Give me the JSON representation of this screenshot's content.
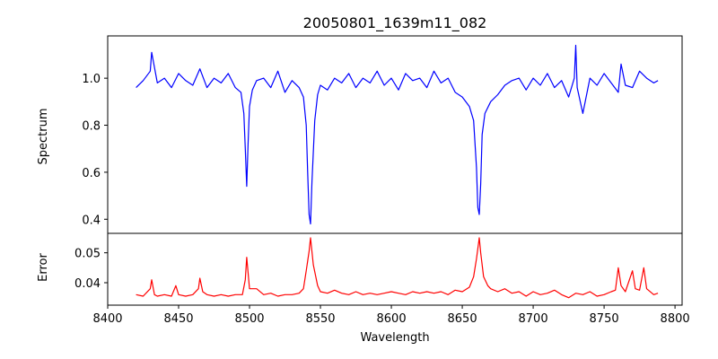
{
  "chart_data": [
    {
      "type": "line",
      "title": "20050801_1639m11_082",
      "xlabel": "",
      "ylabel": "Spectrum",
      "xlim": [
        8400,
        8805
      ],
      "ylim": [
        0.34,
        1.18
      ],
      "yticks": [
        "0.4",
        "0.6",
        "0.8",
        "1.0"
      ],
      "grid": false,
      "series": [
        {
          "color": "#0000ff",
          "x": [
            8420,
            8425,
            8430,
            8431,
            8435,
            8440,
            8445,
            8450,
            8455,
            8460,
            8465,
            8470,
            8475,
            8480,
            8485,
            8490,
            8494,
            8496,
            8497,
            8498,
            8499,
            8500,
            8502,
            8505,
            8510,
            8515,
            8520,
            8525,
            8530,
            8535,
            8538,
            8540,
            8541,
            8542,
            8543,
            8544,
            8546,
            8548,
            8550,
            8555,
            8560,
            8565,
            8570,
            8575,
            8580,
            8585,
            8590,
            8595,
            8600,
            8605,
            8610,
            8615,
            8620,
            8625,
            8630,
            8635,
            8640,
            8645,
            8650,
            8655,
            8658,
            8660,
            8661,
            8662,
            8663,
            8664,
            8666,
            8670,
            8675,
            8680,
            8685,
            8690,
            8695,
            8700,
            8705,
            8710,
            8715,
            8720,
            8725,
            8729,
            8730,
            8731,
            8735,
            8740,
            8745,
            8750,
            8755,
            8760,
            8762,
            8765,
            8770,
            8775,
            8780,
            8785,
            8788
          ],
          "y": [
            0.96,
            0.99,
            1.03,
            1.11,
            0.98,
            1.0,
            0.96,
            1.02,
            0.99,
            0.97,
            1.04,
            0.96,
            1.0,
            0.98,
            1.02,
            0.96,
            0.94,
            0.85,
            0.7,
            0.54,
            0.72,
            0.88,
            0.95,
            0.99,
            1.0,
            0.96,
            1.03,
            0.94,
            0.99,
            0.96,
            0.92,
            0.8,
            0.6,
            0.42,
            0.38,
            0.56,
            0.82,
            0.93,
            0.97,
            0.95,
            1.0,
            0.98,
            1.02,
            0.96,
            1.0,
            0.98,
            1.03,
            0.97,
            1.0,
            0.95,
            1.02,
            0.99,
            1.0,
            0.96,
            1.03,
            0.98,
            1.0,
            0.94,
            0.92,
            0.88,
            0.82,
            0.62,
            0.45,
            0.42,
            0.55,
            0.76,
            0.85,
            0.9,
            0.93,
            0.97,
            0.99,
            1.0,
            0.95,
            1.0,
            0.97,
            1.02,
            0.96,
            0.99,
            0.92,
            1.0,
            1.14,
            0.96,
            0.85,
            1.0,
            0.97,
            1.02,
            0.98,
            0.94,
            1.06,
            0.97,
            0.96,
            1.03,
            1.0,
            0.98,
            0.99
          ]
        }
      ]
    },
    {
      "type": "line",
      "title": "",
      "xlabel": "Wavelength",
      "ylabel": "Error",
      "xlim": [
        8400,
        8805
      ],
      "ylim": [
        0.0325,
        0.0565
      ],
      "yticks": [
        "0.04",
        "0.05"
      ],
      "xticks": [
        "8400",
        "8450",
        "8500",
        "8550",
        "8600",
        "8650",
        "8700",
        "8750",
        "8800"
      ],
      "grid": false,
      "series": [
        {
          "color": "#ff0000",
          "x": [
            8420,
            8425,
            8430,
            8431,
            8433,
            8435,
            8440,
            8445,
            8448,
            8450,
            8455,
            8460,
            8464,
            8465,
            8467,
            8470,
            8475,
            8480,
            8485,
            8490,
            8495,
            8497,
            8498,
            8500,
            8505,
            8510,
            8515,
            8520,
            8525,
            8530,
            8535,
            8538,
            8540,
            8542,
            8543,
            8545,
            8548,
            8550,
            8555,
            8560,
            8565,
            8570,
            8575,
            8580,
            8585,
            8590,
            8595,
            8600,
            8605,
            8610,
            8615,
            8620,
            8625,
            8630,
            8635,
            8640,
            8645,
            8650,
            8655,
            8658,
            8660,
            8662,
            8663,
            8665,
            8668,
            8670,
            8675,
            8680,
            8685,
            8690,
            8695,
            8700,
            8705,
            8710,
            8715,
            8720,
            8725,
            8730,
            8735,
            8740,
            8745,
            8750,
            8755,
            8758,
            8760,
            8762,
            8765,
            8770,
            8772,
            8775,
            8778,
            8780,
            8785,
            8788
          ],
          "y": [
            0.036,
            0.0355,
            0.038,
            0.041,
            0.036,
            0.0355,
            0.036,
            0.0355,
            0.039,
            0.036,
            0.0355,
            0.036,
            0.038,
            0.0415,
            0.037,
            0.036,
            0.0355,
            0.036,
            0.0355,
            0.036,
            0.036,
            0.041,
            0.0485,
            0.038,
            0.038,
            0.036,
            0.0365,
            0.0355,
            0.036,
            0.036,
            0.0365,
            0.038,
            0.044,
            0.0505,
            0.055,
            0.046,
            0.039,
            0.037,
            0.0365,
            0.0375,
            0.0365,
            0.036,
            0.037,
            0.036,
            0.0365,
            0.036,
            0.0365,
            0.037,
            0.0365,
            0.036,
            0.037,
            0.0365,
            0.037,
            0.0365,
            0.037,
            0.036,
            0.0375,
            0.037,
            0.0385,
            0.042,
            0.048,
            0.055,
            0.05,
            0.042,
            0.039,
            0.038,
            0.037,
            0.038,
            0.0365,
            0.037,
            0.0355,
            0.037,
            0.036,
            0.0365,
            0.0375,
            0.036,
            0.035,
            0.0365,
            0.036,
            0.037,
            0.0355,
            0.036,
            0.037,
            0.0375,
            0.045,
            0.039,
            0.037,
            0.044,
            0.038,
            0.0375,
            0.045,
            0.038,
            0.036,
            0.0365
          ]
        }
      ]
    }
  ]
}
